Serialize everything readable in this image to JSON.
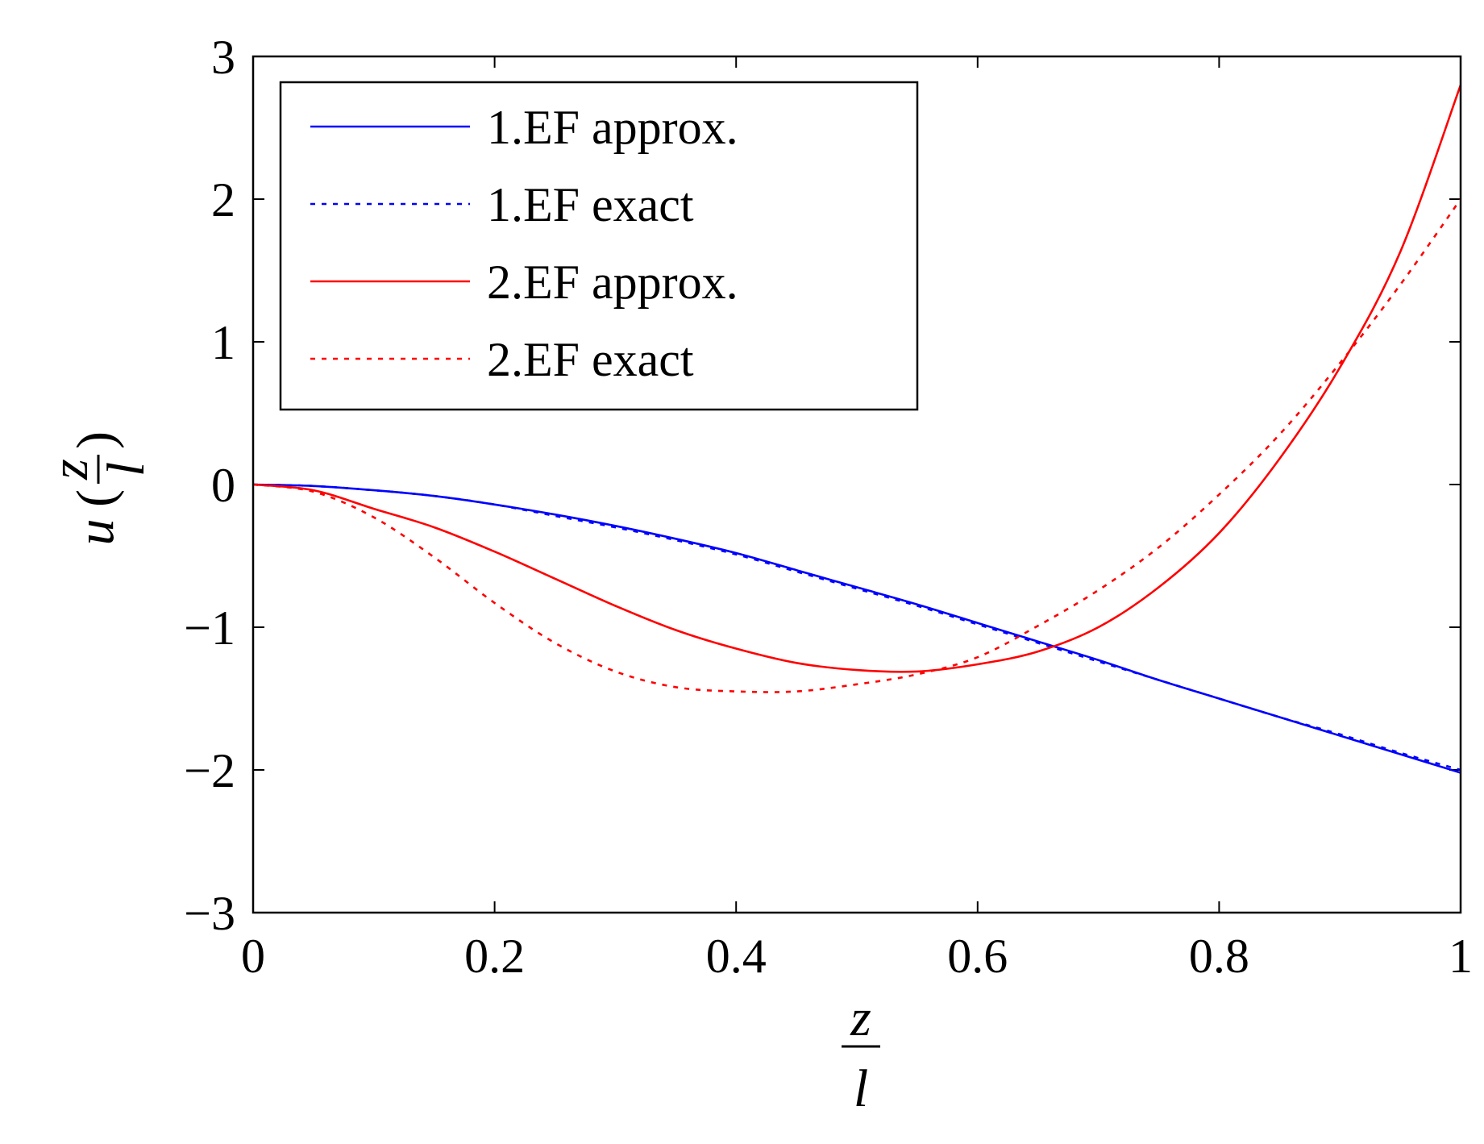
{
  "chart_data": {
    "type": "line",
    "title": "",
    "xlabel": {
      "numerator": "z",
      "denominator": "l"
    },
    "ylabel": {
      "func": "u",
      "open": "(",
      "numerator": "z",
      "denominator": "l",
      "close": ")"
    },
    "xlim": [
      0,
      1
    ],
    "ylim": [
      -3,
      3
    ],
    "xticks": [
      0,
      0.2,
      0.4,
      0.6,
      0.8,
      1
    ],
    "yticks": [
      -3,
      -2,
      -1,
      0,
      1,
      2,
      3
    ],
    "xtick_labels": [
      "0",
      "0.2",
      "0.4",
      "0.6",
      "0.8",
      "1"
    ],
    "ytick_labels": [
      "−3",
      "−2",
      "−1",
      "0",
      "1",
      "2",
      "3"
    ],
    "grid": false,
    "legend_position": "top-left",
    "x": [
      0,
      0.05,
      0.1,
      0.15,
      0.2,
      0.25,
      0.3,
      0.35,
      0.4,
      0.45,
      0.5,
      0.55,
      0.6,
      0.65,
      0.7,
      0.75,
      0.8,
      0.85,
      0.9,
      0.95,
      1.0
    ],
    "series": [
      {
        "name": "1.EF approx.",
        "color": "#0000ff",
        "style": "solid",
        "values": [
          0,
          -0.01,
          -0.04,
          -0.08,
          -0.14,
          -0.21,
          -0.29,
          -0.38,
          -0.48,
          -0.6,
          -0.72,
          -0.84,
          -0.97,
          -1.1,
          -1.23,
          -1.37,
          -1.5,
          -1.63,
          -1.76,
          -1.89,
          -2.02
        ]
      },
      {
        "name": "1.EF exact",
        "color": "#0000ff",
        "style": "dotted",
        "values": [
          0,
          -0.01,
          -0.04,
          -0.08,
          -0.14,
          -0.22,
          -0.3,
          -0.39,
          -0.49,
          -0.61,
          -0.73,
          -0.85,
          -0.98,
          -1.11,
          -1.24,
          -1.37,
          -1.5,
          -1.63,
          -1.75,
          -1.88,
          -2.0
        ]
      },
      {
        "name": "2.EF approx.",
        "color": "#ff0000",
        "style": "solid",
        "values": [
          0,
          -0.04,
          -0.17,
          -0.3,
          -0.47,
          -0.66,
          -0.85,
          -1.02,
          -1.15,
          -1.25,
          -1.3,
          -1.31,
          -1.26,
          -1.17,
          -1.0,
          -0.72,
          -0.34,
          0.18,
          0.82,
          1.63,
          2.8
        ]
      },
      {
        "name": "2.EF exact",
        "color": "#ff0000",
        "style": "dotted",
        "values": [
          0,
          -0.05,
          -0.23,
          -0.51,
          -0.83,
          -1.11,
          -1.31,
          -1.42,
          -1.45,
          -1.45,
          -1.4,
          -1.33,
          -1.21,
          -0.99,
          -0.74,
          -0.44,
          -0.07,
          0.35,
          0.85,
          1.4,
          2.0
        ]
      }
    ]
  }
}
